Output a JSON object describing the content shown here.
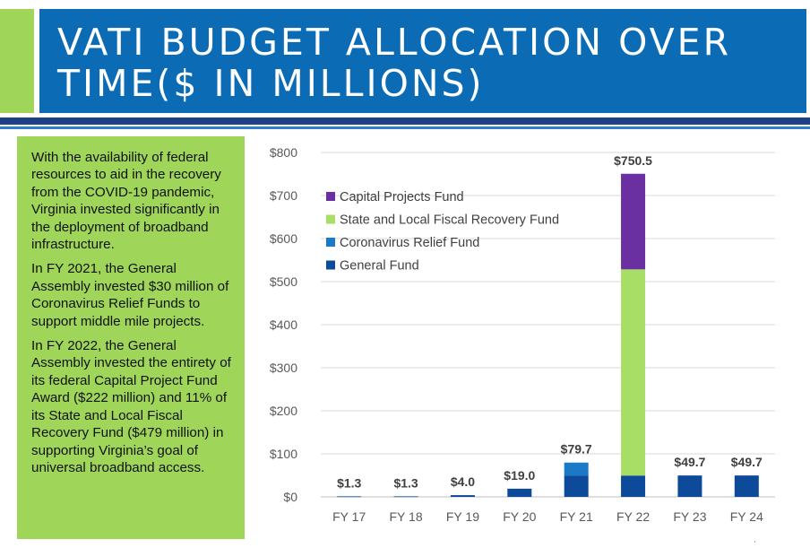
{
  "title": "VATI BUDGET ALLOCATION OVER TIME($ IN MILLIONS)",
  "textbox": {
    "p1": "With the availability of federal resources to aid in the recovery from the COVID-19 pandemic, Virginia invested significantly in the deployment of broadband infrastructure.",
    "p2": "In FY 2021, the General Assembly invested $30 million of Coronavirus Relief Funds to support middle mile projects.",
    "p3": "In FY 2022, the General Assembly invested the entirety of its federal Capital Project Fund Award ($222 million) and 11% of its State and Local Fiscal Recovery Fund ($479 million) in supporting Virginia’s goal of universal broadband access."
  },
  "colors": {
    "title_bar": "#0b6bb5",
    "accent_green": "#9fd65a",
    "general_fund": "#0d4a9a",
    "coronavirus_relief": "#1a7ac8",
    "state_local": "#a8dd66",
    "capital_projects": "#6a2fa0"
  },
  "chart_data": {
    "type": "bar",
    "stacked": true,
    "categories": [
      "FY 17",
      "FY 18",
      "FY 19",
      "FY 20",
      "FY 21",
      "FY 22",
      "FY 23",
      "FY 24"
    ],
    "series": [
      {
        "name": "General Fund",
        "values": [
          1.3,
          1.3,
          4.0,
          19.0,
          49.7,
          49.5,
          49.7,
          49.7
        ],
        "color": "#0d4a9a"
      },
      {
        "name": "Coronavirus Relief Fund",
        "values": [
          0,
          0,
          0,
          0,
          30.0,
          0,
          0,
          0
        ],
        "color": "#1a7ac8"
      },
      {
        "name": "State and Local Fiscal Recovery Fund",
        "values": [
          0,
          0,
          0,
          0,
          0,
          479.0,
          0,
          0
        ],
        "color": "#a8dd66"
      },
      {
        "name": "Capital Projects Fund",
        "values": [
          0,
          0,
          0,
          0,
          0,
          222.0,
          0,
          0
        ],
        "color": "#6a2fa0"
      }
    ],
    "totals": [
      1.3,
      1.3,
      4.0,
      19.0,
      79.7,
      750.5,
      49.7,
      49.7
    ],
    "total_labels": [
      "$1.3",
      "$1.3",
      "$4.0",
      "$19.0",
      "$79.7",
      "$750.5",
      "$49.7",
      "$49.7"
    ],
    "ylim": [
      0,
      800
    ],
    "yticks": [
      0,
      100,
      200,
      300,
      400,
      500,
      600,
      700,
      800
    ],
    "ytick_labels": [
      "$0",
      "$100",
      "$200",
      "$300",
      "$400",
      "$500",
      "$600",
      "$700",
      "$800"
    ],
    "grid": true,
    "legend_position": "top-left",
    "legend_order": [
      "Capital Projects Fund",
      "State and Local Fiscal Recovery Fund",
      "Coronavirus Relief Fund",
      "General Fund"
    ]
  }
}
